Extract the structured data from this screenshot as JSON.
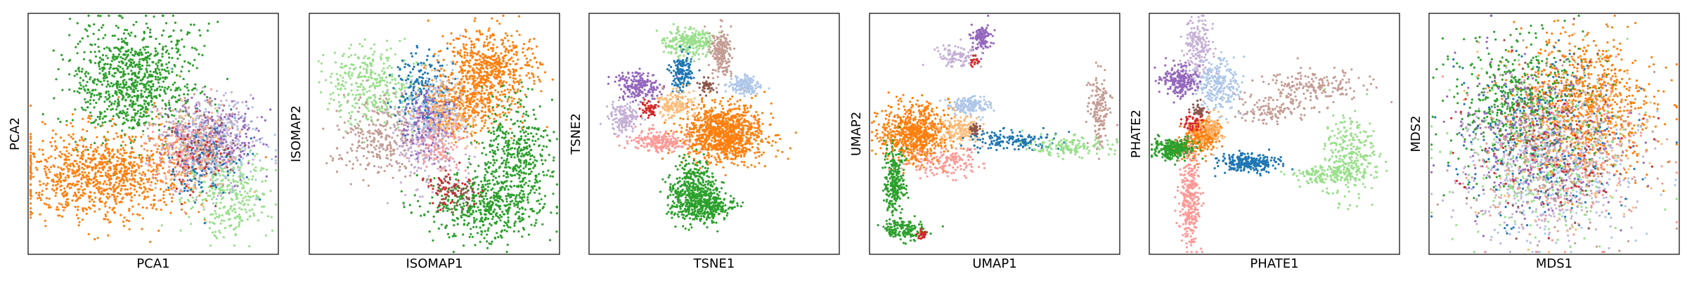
{
  "palette": {
    "tab_blue": "#1f77b4",
    "light_blue": "#aec7e8",
    "orange": "#ff7f0e",
    "light_orange": "#ffbb78",
    "green": "#2ca02c",
    "light_green": "#98df8a",
    "red": "#d62728",
    "pink": "#ff9896",
    "purple": "#9467bd",
    "lavender": "#c5b0d5",
    "brown": "#8c564b",
    "rosy_brown": "#c49c94"
  },
  "chart_data": [
    {
      "type": "scatter",
      "xlabel": "PCA1",
      "ylabel": "PCA2",
      "xlim": [
        0,
        100
      ],
      "ylim": [
        0,
        100
      ],
      "grid": false,
      "ticks": false,
      "legend": "none",
      "groups": [
        {
          "color": "#2ca02c",
          "n": 900,
          "blobs": [
            [
              42,
              72,
              12,
              12,
              1.0
            ]
          ]
        },
        {
          "color": "#ff7f0e",
          "n": 1000,
          "blobs": [
            [
              30,
              33,
              17,
              9,
              1.0
            ]
          ]
        },
        {
          "color": "#c5b0d5",
          "n": 350,
          "blobs": [
            [
              72,
              46,
              9,
              9,
              1.0
            ]
          ]
        },
        {
          "color": "#9467bd",
          "n": 250,
          "blobs": [
            [
              74,
              48,
              9,
              9,
              1.0
            ]
          ]
        },
        {
          "color": "#98df8a",
          "n": 300,
          "blobs": [
            [
              80,
              24,
              8,
              8,
              1.0
            ]
          ]
        },
        {
          "color": "#1f77b4",
          "n": 150,
          "blobs": [
            [
              70,
              40,
              8,
              8,
              1.0
            ]
          ]
        },
        {
          "color": "#aec7e8",
          "n": 150,
          "blobs": [
            [
              75,
              45,
              9,
              9,
              1.0
            ]
          ]
        },
        {
          "color": "#c49c94",
          "n": 150,
          "blobs": [
            [
              66,
              48,
              9,
              9,
              1.0
            ]
          ]
        },
        {
          "color": "#ff9896",
          "n": 120,
          "blobs": [
            [
              62,
              42,
              8,
              8,
              1.0
            ]
          ]
        },
        {
          "color": "#ffbb78",
          "n": 100,
          "blobs": [
            [
              65,
              44,
              8,
              8,
              1.0
            ]
          ]
        },
        {
          "color": "#d62728",
          "n": 40,
          "blobs": [
            [
              68,
              40,
              8,
              8,
              1.0
            ]
          ]
        },
        {
          "color": "#8c564b",
          "n": 40,
          "blobs": [
            [
              70,
              45,
              8,
              8,
              1.0
            ]
          ]
        }
      ]
    },
    {
      "type": "scatter",
      "xlabel": "ISOMAP1",
      "ylabel": "ISOMAP2",
      "xlim": [
        0,
        100
      ],
      "ylim": [
        0,
        100
      ],
      "grid": false,
      "ticks": false,
      "legend": "none",
      "groups": [
        {
          "color": "#ff7f0e",
          "n": 900,
          "blobs": [
            [
              72,
              77,
              9,
              8,
              0.6
            ],
            [
              62,
              62,
              8,
              7,
              0.4
            ]
          ]
        },
        {
          "color": "#2ca02c",
          "n": 900,
          "blobs": [
            [
              83,
              40,
              7,
              12,
              0.5
            ],
            [
              70,
              20,
              11,
              7,
              0.5
            ]
          ]
        },
        {
          "color": "#98df8a",
          "n": 350,
          "blobs": [
            [
              25,
              70,
              9,
              8,
              1.0
            ]
          ]
        },
        {
          "color": "#c49c94",
          "n": 300,
          "blobs": [
            [
              30,
              48,
              9,
              8,
              1.0
            ]
          ]
        },
        {
          "color": "#c5b0d5",
          "n": 300,
          "blobs": [
            [
              47,
              48,
              7,
              10,
              1.0
            ]
          ]
        },
        {
          "color": "#1f77b4",
          "n": 200,
          "blobs": [
            [
              45,
              68,
              5,
              8,
              1.0
            ]
          ]
        },
        {
          "color": "#aec7e8",
          "n": 150,
          "blobs": [
            [
              50,
              62,
              6,
              7,
              1.0
            ]
          ]
        },
        {
          "color": "#9467bd",
          "n": 150,
          "blobs": [
            [
              48,
              54,
              5,
              7,
              1.0
            ]
          ]
        },
        {
          "color": "#ffbb78",
          "n": 120,
          "blobs": [
            [
              55,
              58,
              6,
              7,
              1.0
            ]
          ]
        },
        {
          "color": "#d62728",
          "n": 60,
          "blobs": [
            [
              55,
              28,
              5,
              4,
              1.0
            ]
          ]
        },
        {
          "color": "#8c564b",
          "n": 60,
          "blobs": [
            [
              58,
              25,
              5,
              4,
              1.0
            ]
          ]
        },
        {
          "color": "#ff9896",
          "n": 80,
          "blobs": [
            [
              52,
              45,
              6,
              6,
              1.0
            ]
          ]
        }
      ]
    },
    {
      "type": "scatter",
      "xlabel": "TSNE1",
      "ylabel": "TSNE2",
      "xlim": [
        0,
        100
      ],
      "ylim": [
        0,
        100
      ],
      "grid": false,
      "ticks": false,
      "legend": "none",
      "groups": [
        {
          "color": "#ff7f0e",
          "n": 1000,
          "blobs": [
            [
              54,
              50,
              8,
              6,
              1.0
            ]
          ]
        },
        {
          "color": "#2ca02c",
          "n": 700,
          "blobs": [
            [
              42,
              27,
              5,
              6,
              0.6
            ],
            [
              46,
              20,
              6,
              3,
              0.4
            ]
          ]
        },
        {
          "color": "#98df8a",
          "n": 250,
          "blobs": [
            [
              40,
              88,
              5,
              3,
              1.0
            ]
          ]
        },
        {
          "color": "#c49c94",
          "n": 200,
          "blobs": [
            [
              53,
              84,
              2,
              5,
              1.0
            ]
          ]
        },
        {
          "color": "#1f77b4",
          "n": 150,
          "blobs": [
            [
              37,
              75,
              2,
              4,
              1.0
            ]
          ]
        },
        {
          "color": "#aec7e8",
          "n": 150,
          "blobs": [
            [
              62,
              70,
              3,
              2,
              1.0
            ]
          ]
        },
        {
          "color": "#9467bd",
          "n": 200,
          "blobs": [
            [
              20,
              70,
              4,
              3,
              1.0
            ]
          ]
        },
        {
          "color": "#c5b0d5",
          "n": 150,
          "blobs": [
            [
              14,
              57,
              3,
              3,
              1.0
            ]
          ]
        },
        {
          "color": "#ff9896",
          "n": 200,
          "blobs": [
            [
              28,
              47,
              6,
              2,
              1.0
            ]
          ]
        },
        {
          "color": "#ffbb78",
          "n": 150,
          "blobs": [
            [
              34,
              62,
              4,
              3,
              1.0
            ]
          ]
        },
        {
          "color": "#d62728",
          "n": 50,
          "blobs": [
            [
              24,
              60,
              1.5,
              1.5,
              1.0
            ]
          ]
        },
        {
          "color": "#8c564b",
          "n": 40,
          "blobs": [
            [
              47,
              70,
              1.5,
              1.5,
              1.0
            ]
          ]
        }
      ]
    },
    {
      "type": "scatter",
      "xlabel": "UMAP1",
      "ylabel": "UMAP2",
      "xlim": [
        0,
        100
      ],
      "ylim": [
        0,
        100
      ],
      "grid": false,
      "ticks": false,
      "legend": "none",
      "groups": [
        {
          "color": "#ff7f0e",
          "n": 700,
          "blobs": [
            [
              18,
              50,
              7,
              6,
              1.0
            ]
          ]
        },
        {
          "color": "#2ca02c",
          "n": 400,
          "blobs": [
            [
              10,
              30,
              2,
              8,
              0.6
            ],
            [
              14,
              10,
              4,
              2,
              0.4
            ]
          ]
        },
        {
          "color": "#9467bd",
          "n": 120,
          "blobs": [
            [
              45,
              90,
              2,
              3,
              1.0
            ]
          ]
        },
        {
          "color": "#c5b0d5",
          "n": 100,
          "blobs": [
            [
              35,
              82,
              4,
              2,
              1.0
            ]
          ]
        },
        {
          "color": "#aec7e8",
          "n": 150,
          "blobs": [
            [
              40,
              62,
              4,
              2,
              1.0
            ]
          ]
        },
        {
          "color": "#ffbb78",
          "n": 150,
          "blobs": [
            [
              36,
              52,
              4,
              3,
              1.0
            ]
          ]
        },
        {
          "color": "#1f77b4",
          "n": 150,
          "blobs": [
            [
              57,
              47,
              10,
              2,
              1.0
            ]
          ]
        },
        {
          "color": "#98df8a",
          "n": 150,
          "blobs": [
            [
              80,
              45,
              8,
              2,
              1.0
            ]
          ]
        },
        {
          "color": "#c49c94",
          "n": 150,
          "blobs": [
            [
              92,
              60,
              2,
              7,
              1.0
            ]
          ]
        },
        {
          "color": "#ff9896",
          "n": 150,
          "blobs": [
            [
              30,
              38,
              8,
              3,
              1.0
            ]
          ]
        },
        {
          "color": "#d62728",
          "n": 40,
          "blobs": [
            [
              42,
              80,
              1,
              1,
              0.5
            ],
            [
              21,
              8,
              1,
              1,
              0.5
            ]
          ]
        },
        {
          "color": "#8c564b",
          "n": 40,
          "blobs": [
            [
              42,
              52,
              1,
              1,
              1.0
            ]
          ]
        }
      ]
    },
    {
      "type": "scatter",
      "xlabel": "PHATE1",
      "ylabel": "PHATE2",
      "xlim": [
        0,
        100
      ],
      "ylim": [
        0,
        100
      ],
      "grid": false,
      "ticks": false,
      "legend": "none",
      "groups": [
        {
          "color": "#ff7f0e",
          "n": 400,
          "blobs": [
            [
              22,
              50,
              3,
              3,
              0.7
            ],
            [
              16,
              44,
              3,
              3,
              0.3
            ]
          ]
        },
        {
          "color": "#2ca02c",
          "n": 300,
          "blobs": [
            [
              10,
              44,
              4,
              2,
              1.0
            ]
          ]
        },
        {
          "color": "#98df8a",
          "n": 400,
          "blobs": [
            [
              80,
              40,
              5,
              8,
              0.7
            ],
            [
              70,
              33,
              8,
              2,
              0.3
            ]
          ]
        },
        {
          "color": "#c49c94",
          "n": 300,
          "blobs": [
            [
              65,
              70,
              10,
              3,
              0.6
            ],
            [
              50,
              60,
              8,
              3,
              0.4
            ]
          ]
        },
        {
          "color": "#1f77b4",
          "n": 250,
          "blobs": [
            [
              40,
              38,
              6,
              2,
              1.0
            ]
          ]
        },
        {
          "color": "#ff9896",
          "n": 300,
          "blobs": [
            [
              16,
              22,
              2,
              10,
              1.0
            ]
          ]
        },
        {
          "color": "#c5b0d5",
          "n": 200,
          "blobs": [
            [
              20,
              85,
              3,
              7,
              1.0
            ]
          ]
        },
        {
          "color": "#aec7e8",
          "n": 250,
          "blobs": [
            [
              28,
              70,
              4,
              6,
              1.0
            ]
          ]
        },
        {
          "color": "#9467bd",
          "n": 200,
          "blobs": [
            [
              12,
              72,
              4,
              3,
              1.0
            ]
          ]
        },
        {
          "color": "#d62728",
          "n": 60,
          "blobs": [
            [
              18,
              55,
              2,
              2,
              1.0
            ]
          ]
        },
        {
          "color": "#ffbb78",
          "n": 100,
          "blobs": [
            [
              25,
              52,
              3,
              3,
              1.0
            ]
          ]
        },
        {
          "color": "#8c564b",
          "n": 40,
          "blobs": [
            [
              20,
              60,
              1.5,
              1.5,
              1.0
            ]
          ]
        }
      ]
    },
    {
      "type": "scatter",
      "xlabel": "MDS1",
      "ylabel": "MDS2",
      "xlim": [
        0,
        100
      ],
      "ylim": [
        0,
        100
      ],
      "grid": false,
      "ticks": false,
      "legend": "none",
      "groups": [
        {
          "color": "#ff7f0e",
          "n": 900,
          "blobs": [
            [
              62,
              62,
              14,
              14,
              1.0
            ]
          ]
        },
        {
          "color": "#2ca02c",
          "n": 500,
          "blobs": [
            [
              35,
              62,
              13,
              14,
              1.0
            ]
          ]
        },
        {
          "color": "#c5b0d5",
          "n": 350,
          "blobs": [
            [
              45,
              35,
              17,
              15,
              1.0
            ]
          ]
        },
        {
          "color": "#aec7e8",
          "n": 300,
          "blobs": [
            [
              50,
              35,
              17,
              15,
              1.0
            ]
          ]
        },
        {
          "color": "#98df8a",
          "n": 300,
          "blobs": [
            [
              45,
              40,
              17,
              17,
              1.0
            ]
          ]
        },
        {
          "color": "#1f77b4",
          "n": 250,
          "blobs": [
            [
              45,
              45,
              17,
              17,
              1.0
            ]
          ]
        },
        {
          "color": "#9467bd",
          "n": 250,
          "blobs": [
            [
              42,
              48,
              17,
              17,
              1.0
            ]
          ]
        },
        {
          "color": "#c49c94",
          "n": 200,
          "blobs": [
            [
              50,
              40,
              17,
              17,
              1.0
            ]
          ]
        },
        {
          "color": "#ff9896",
          "n": 200,
          "blobs": [
            [
              55,
              40,
              17,
              17,
              1.0
            ]
          ]
        },
        {
          "color": "#ffbb78",
          "n": 150,
          "blobs": [
            [
              55,
              45,
              17,
              17,
              1.0
            ]
          ]
        },
        {
          "color": "#d62728",
          "n": 80,
          "blobs": [
            [
              48,
              48,
              17,
              17,
              1.0
            ]
          ]
        },
        {
          "color": "#8c564b",
          "n": 80,
          "blobs": [
            [
              50,
              50,
              17,
              17,
              1.0
            ]
          ]
        }
      ]
    }
  ]
}
